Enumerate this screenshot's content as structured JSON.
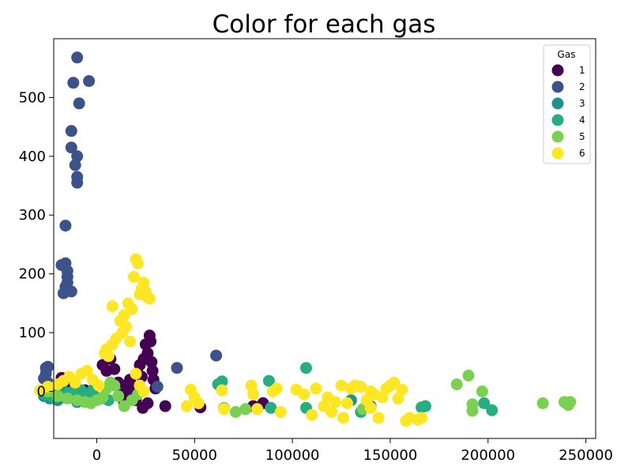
{
  "chart_data": {
    "type": "scatter",
    "title": "Color for each gas",
    "xlabel": "",
    "ylabel": "",
    "xlim": [
      -22000,
      255000
    ],
    "ylim": [
      -80,
      600
    ],
    "xticks": [
      0,
      50000,
      100000,
      150000,
      200000,
      250000
    ],
    "yticks": [
      0,
      100,
      200,
      300,
      400,
      500
    ],
    "grid": false,
    "legend": {
      "title": "Gas",
      "placement": "top-right"
    },
    "series": [
      {
        "name": "1",
        "color": "#440154",
        "points": [
          [
            -18000,
            23
          ],
          [
            -14000,
            5
          ],
          [
            -10000,
            -8
          ],
          [
            -6000,
            2
          ],
          [
            -2000,
            -5
          ],
          [
            3000,
            45
          ],
          [
            5000,
            35
          ],
          [
            7000,
            55
          ],
          [
            9000,
            38
          ],
          [
            11000,
            15
          ],
          [
            13000,
            -5
          ],
          [
            15000,
            10
          ],
          [
            17000,
            20
          ],
          [
            19000,
            5
          ],
          [
            21000,
            30
          ],
          [
            22000,
            45
          ],
          [
            23000,
            25
          ],
          [
            24000,
            55
          ],
          [
            25000,
            80
          ],
          [
            26000,
            65
          ],
          [
            27000,
            95
          ],
          [
            27500,
            85
          ],
          [
            28000,
            50
          ],
          [
            28500,
            35
          ],
          [
            29000,
            20
          ],
          [
            30000,
            5
          ],
          [
            23500,
            -28
          ],
          [
            26000,
            -20
          ],
          [
            20000,
            -15
          ],
          [
            18000,
            0
          ],
          [
            14000,
            -20
          ],
          [
            35000,
            -25
          ],
          [
            53000,
            -27
          ],
          [
            80000,
            -25
          ],
          [
            85000,
            -20
          ]
        ]
      },
      {
        "name": "2",
        "color": "#3b528b",
        "points": [
          [
            -10000,
            568
          ],
          [
            -4000,
            528
          ],
          [
            -12000,
            525
          ],
          [
            -9000,
            490
          ],
          [
            -13000,
            443
          ],
          [
            -13000,
            415
          ],
          [
            -10000,
            400
          ],
          [
            -11000,
            385
          ],
          [
            -10000,
            365
          ],
          [
            -10000,
            355
          ],
          [
            -16000,
            282
          ],
          [
            -18000,
            215
          ],
          [
            -16000,
            218
          ],
          [
            -15000,
            205
          ],
          [
            -15000,
            195
          ],
          [
            -15000,
            185
          ],
          [
            -16000,
            178
          ],
          [
            -13000,
            170
          ],
          [
            -17000,
            167
          ],
          [
            -26000,
            40
          ],
          [
            -25000,
            42
          ],
          [
            -26000,
            30
          ],
          [
            -27000,
            22
          ],
          [
            -25000,
            15
          ],
          [
            41000,
            40
          ],
          [
            61000,
            61
          ],
          [
            31000,
            8
          ]
        ]
      },
      {
        "name": "3",
        "color": "#21918c",
        "points": [
          [
            -27000,
            -8
          ],
          [
            -24000,
            -12
          ],
          [
            -20000,
            -15
          ],
          [
            -17000,
            -10
          ],
          [
            -14000,
            -5
          ],
          [
            -11000,
            -3
          ],
          [
            -8000,
            -10
          ],
          [
            -5000,
            -12
          ],
          [
            -3000,
            -6
          ],
          [
            -21000,
            -2
          ],
          [
            -18000,
            5
          ],
          [
            -10000,
            -18
          ],
          [
            130000,
            -15
          ],
          [
            140000,
            -25
          ]
        ]
      },
      {
        "name": "4",
        "color": "#27ad81",
        "points": [
          [
            -28000,
            0
          ],
          [
            -26000,
            -5
          ],
          [
            -22000,
            -10
          ],
          [
            -18000,
            -8
          ],
          [
            -14000,
            -2
          ],
          [
            -11000,
            5
          ],
          [
            -8000,
            2
          ],
          [
            -4000,
            -10
          ],
          [
            -2000,
            3
          ],
          [
            2000,
            -12
          ],
          [
            6000,
            -15
          ],
          [
            64000,
            17
          ],
          [
            62000,
            12
          ],
          [
            88000,
            18
          ],
          [
            107000,
            40
          ],
          [
            107000,
            -28
          ],
          [
            135000,
            -35
          ],
          [
            166000,
            -27
          ],
          [
            168000,
            -25
          ],
          [
            198000,
            -20
          ],
          [
            202000,
            -32
          ],
          [
            89000,
            -28
          ]
        ]
      },
      {
        "name": "5",
        "color": "#7ad151",
        "points": [
          [
            -25000,
            0
          ],
          [
            -20000,
            -8
          ],
          [
            -15000,
            -12
          ],
          [
            -10000,
            -15
          ],
          [
            -6000,
            -18
          ],
          [
            -3000,
            -20
          ],
          [
            0,
            -15
          ],
          [
            3000,
            -10
          ],
          [
            5000,
            5
          ],
          [
            7000,
            15
          ],
          [
            9000,
            10
          ],
          [
            11000,
            -8
          ],
          [
            14000,
            -25
          ],
          [
            18000,
            -15
          ],
          [
            21000,
            -5
          ],
          [
            65000,
            -28
          ],
          [
            71000,
            -35
          ],
          [
            76000,
            -30
          ],
          [
            136000,
            -30
          ],
          [
            184000,
            12
          ],
          [
            190000,
            27
          ],
          [
            192000,
            -22
          ],
          [
            192000,
            -33
          ],
          [
            197000,
            0
          ],
          [
            228000,
            -20
          ],
          [
            239000,
            -18
          ],
          [
            240000,
            -20
          ],
          [
            241000,
            -23
          ],
          [
            242000,
            -18
          ]
        ]
      },
      {
        "name": "6",
        "color": "#fde725",
        "points": [
          [
            -29000,
            2
          ],
          [
            -25000,
            8
          ],
          [
            -20000,
            12
          ],
          [
            -17000,
            18
          ],
          [
            -14000,
            25
          ],
          [
            -11000,
            15
          ],
          [
            -8000,
            30
          ],
          [
            -5000,
            35
          ],
          [
            -2000,
            20
          ],
          [
            1000,
            10
          ],
          [
            4000,
            65
          ],
          [
            5000,
            72
          ],
          [
            6000,
            60
          ],
          [
            8000,
            80
          ],
          [
            10000,
            90
          ],
          [
            8000,
            145
          ],
          [
            12000,
            120
          ],
          [
            13000,
            100
          ],
          [
            14000,
            130
          ],
          [
            16000,
            150
          ],
          [
            18000,
            140
          ],
          [
            19000,
            195
          ],
          [
            20000,
            225
          ],
          [
            21000,
            218
          ],
          [
            22000,
            165
          ],
          [
            23000,
            175
          ],
          [
            24000,
            185
          ],
          [
            25000,
            170
          ],
          [
            26000,
            160
          ],
          [
            27000,
            158
          ],
          [
            15000,
            110
          ],
          [
            17000,
            85
          ],
          [
            20000,
            30
          ],
          [
            22000,
            10
          ],
          [
            24000,
            0
          ],
          [
            46000,
            -25
          ],
          [
            48000,
            3
          ],
          [
            50000,
            -10
          ],
          [
            52000,
            -20
          ],
          [
            64000,
            2
          ],
          [
            65000,
            -30
          ],
          [
            79000,
            10
          ],
          [
            80000,
            -5
          ],
          [
            82000,
            -30
          ],
          [
            90000,
            0
          ],
          [
            92000,
            5
          ],
          [
            94000,
            -35
          ],
          [
            102000,
            3
          ],
          [
            106000,
            -5
          ],
          [
            110000,
            -40
          ],
          [
            112000,
            5
          ],
          [
            118000,
            -10
          ],
          [
            120000,
            -35
          ],
          [
            125000,
            10
          ],
          [
            126000,
            -45
          ],
          [
            130000,
            5
          ],
          [
            132000,
            10
          ],
          [
            135000,
            8
          ],
          [
            138000,
            -15
          ],
          [
            140000,
            0
          ],
          [
            142000,
            -5
          ],
          [
            144000,
            -45
          ],
          [
            146000,
            -10
          ],
          [
            148000,
            5
          ],
          [
            150000,
            10
          ],
          [
            152000,
            15
          ],
          [
            154000,
            -12
          ],
          [
            156000,
            3
          ],
          [
            158000,
            -50
          ],
          [
            160000,
            -45
          ],
          [
            164000,
            -48
          ],
          [
            166000,
            -45
          ],
          [
            140000,
            -28
          ],
          [
            128000,
            -20
          ],
          [
            122000,
            -18
          ],
          [
            116000,
            -25
          ]
        ]
      }
    ]
  }
}
